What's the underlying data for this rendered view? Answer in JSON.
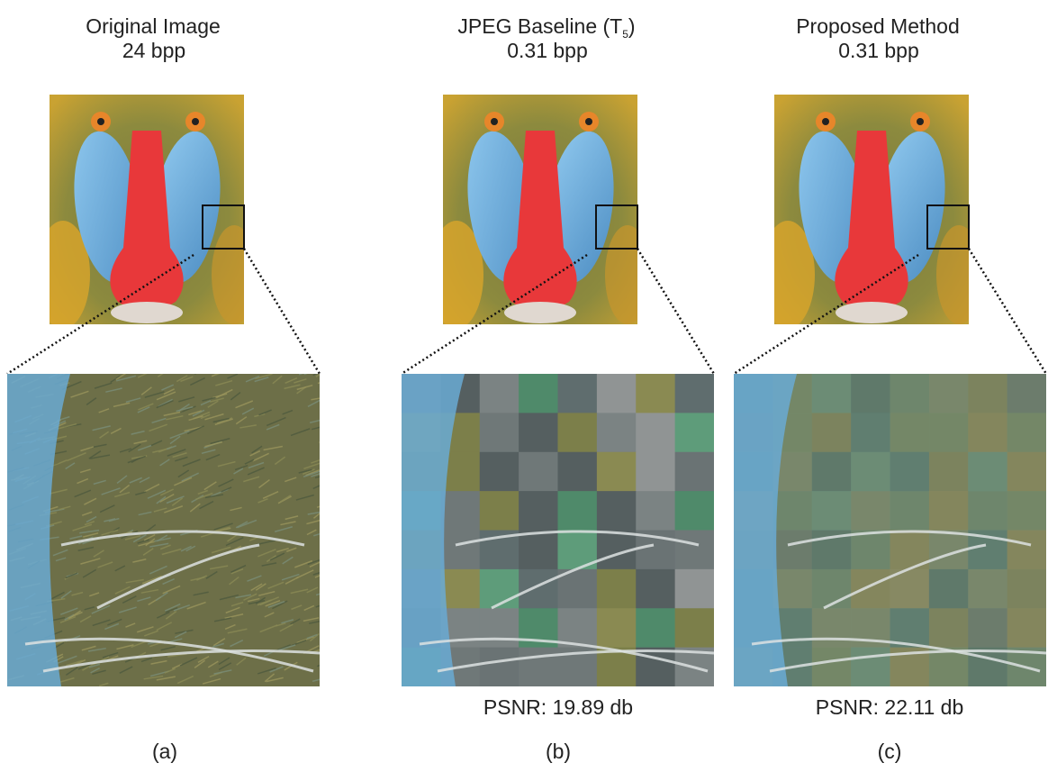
{
  "panels": [
    {
      "title": "Original Image",
      "bitrate": "24 bpp",
      "label": "(a)"
    },
    {
      "title": {
        "text": "JPEG Baseline (T",
        "subscript": "5",
        "suffix": ")"
      },
      "bitrate": "0.31 bpp",
      "psnr": "PSNR: 19.89 db",
      "label": "(b)"
    },
    {
      "title": "Proposed Method",
      "bitrate": "0.31 bpp",
      "psnr": "PSNR: 22.11 db",
      "label": "(c)"
    }
  ]
}
